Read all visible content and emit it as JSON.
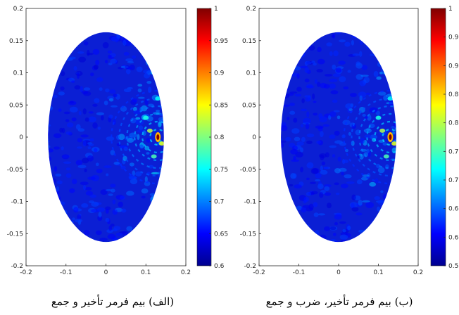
{
  "captions": {
    "left": "(الف) بیم فرمر تأخیر و جمع",
    "right": "(ب) بیم فرمر تأخیر، ضرب و جمع"
  },
  "chart_data": [
    {
      "type": "heatmap",
      "title": "",
      "xlabel": "",
      "ylabel": "",
      "xlim": [
        -0.2,
        0.2
      ],
      "ylim": [
        -0.2,
        0.2
      ],
      "x_ticks": [
        "-0.2",
        "-0.1",
        "0",
        "0.1",
        "0.2"
      ],
      "y_ticks": [
        "0.2",
        "0.15",
        "0.1",
        "0.05",
        "0",
        "-0.05",
        "-0.1",
        "-0.15",
        "-0.2"
      ],
      "colorbar": {
        "range": [
          0.6,
          1.0
        ],
        "ticks": [
          "1",
          "0.95",
          "0.9",
          "0.85",
          "0.8",
          "0.75",
          "0.7",
          "0.65",
          "0.6"
        ],
        "colormap": "jet"
      },
      "region": "elliptical field of view centered at (0, 0)",
      "peak": {
        "x": 0.13,
        "y": 0.0,
        "value": 1.0
      },
      "grid": false
    },
    {
      "type": "heatmap",
      "title": "",
      "xlabel": "",
      "ylabel": "",
      "xlim": [
        -0.2,
        0.2
      ],
      "ylim": [
        -0.2,
        0.2
      ],
      "x_ticks": [
        "-0.2",
        "-0.1",
        "0",
        "0.1",
        "0.2"
      ],
      "y_ticks": [
        "0.2",
        "0.15",
        "0.1",
        "0.05",
        "0",
        "-0.05",
        "-0.1",
        "-0.15",
        "-0.2"
      ],
      "colorbar": {
        "range": [
          0.55,
          1.0
        ],
        "ticks": [
          "1",
          "0.95",
          "0.9",
          "0.85",
          "0.8",
          "0.75",
          "0.7",
          "0.65",
          "0.6",
          "0.55"
        ],
        "colormap": "jet"
      },
      "region": "elliptical field of view centered at (0, 0)",
      "peak": {
        "x": 0.13,
        "y": 0.0,
        "value": 1.0
      },
      "grid": false
    }
  ]
}
